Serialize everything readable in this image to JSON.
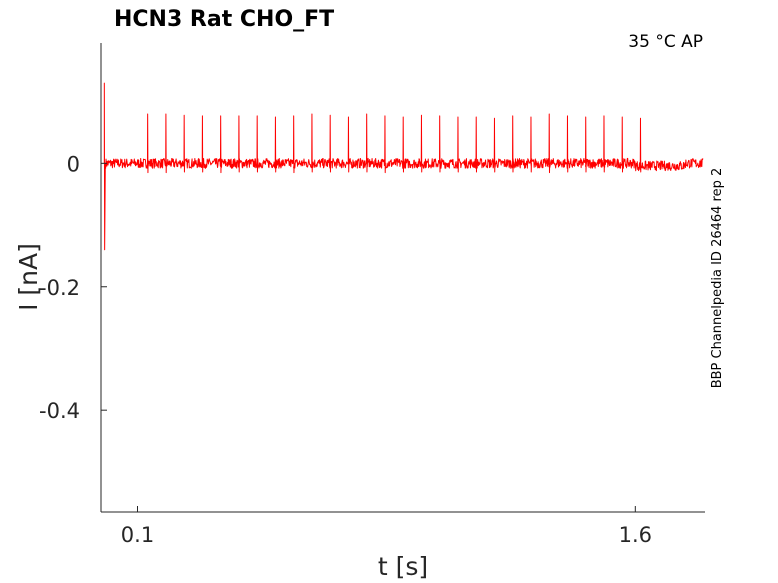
{
  "chart_data": {
    "type": "line",
    "title": "HCN3  Rat  CHO_FT",
    "annotation": "35 °C  AP",
    "side_label": "BBP Channelpedia ID 26464 rep 2",
    "xlabel": "t [s]",
    "ylabel": "I [nA]",
    "xlim": [
      -0.01,
      1.81
    ],
    "ylim": [
      -0.565,
      0.195
    ],
    "x_ticks": [
      {
        "value": 0.1,
        "label": "0.1"
      },
      {
        "value": 1.6,
        "label": "1.6"
      }
    ],
    "y_ticks": [
      {
        "value": 0,
        "label": "0"
      },
      {
        "value": -0.2,
        "label": "-0.2"
      },
      {
        "value": -0.4,
        "label": "-0.4"
      }
    ],
    "grid": false,
    "series": [
      {
        "color": "#ff0000",
        "baseline": 0.0,
        "noise_amplitude": 0.008,
        "stimulus_start": 0.0,
        "stimulus_artifact": {
          "peak": 0.13,
          "trough": -0.14
        },
        "spike_times": [
          0.13,
          0.185,
          0.24,
          0.295,
          0.35,
          0.405,
          0.46,
          0.515,
          0.57,
          0.625,
          0.68,
          0.735,
          0.79,
          0.845,
          0.9,
          0.955,
          1.01,
          1.065,
          1.12,
          1.175,
          1.23,
          1.285,
          1.34,
          1.395,
          1.45,
          1.505,
          1.56,
          1.615
        ],
        "spike_peaks": [
          0.08,
          0.08,
          0.078,
          0.077,
          0.077,
          0.077,
          0.077,
          0.075,
          0.077,
          0.08,
          0.078,
          0.075,
          0.08,
          0.077,
          0.075,
          0.078,
          0.077,
          0.075,
          0.075,
          0.073,
          0.077,
          0.075,
          0.08,
          0.077,
          0.075,
          0.077,
          0.075,
          0.073
        ],
        "spike_troughs": [
          -0.015,
          -0.015,
          -0.014,
          -0.014,
          -0.015,
          -0.014,
          -0.014,
          -0.014,
          -0.015,
          -0.014,
          -0.014,
          -0.014,
          -0.014,
          -0.015,
          -0.014,
          -0.014,
          -0.014,
          -0.014,
          -0.014,
          -0.014,
          -0.014,
          -0.014,
          -0.015,
          -0.014,
          -0.014,
          -0.014,
          -0.014,
          -0.014
        ]
      }
    ]
  }
}
